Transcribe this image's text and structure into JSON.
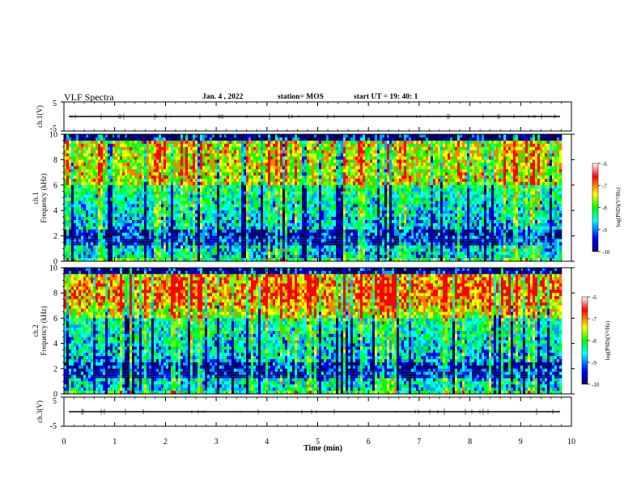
{
  "header": {
    "title": "VLF Spectra",
    "date": "Jan. 4 , 2022",
    "station": "station= MOS",
    "start": "start UT =  19: 40: 1"
  },
  "chart_data": [
    {
      "type": "line",
      "panel": "waveform-ch1",
      "ylabel": "ch.1(V)",
      "ylim": [
        -5,
        5
      ],
      "yticks": [
        "5",
        "-5"
      ],
      "x": [
        0,
        10
      ],
      "values": [
        0,
        0
      ]
    },
    {
      "type": "heatmap",
      "panel": "spectrogram-ch1",
      "ylabel_top": "ch.1",
      "ylabel": "Frequency (kHz)",
      "ylim": [
        0,
        10
      ],
      "yticks": [
        "0",
        "2",
        "4",
        "6",
        "8",
        "10"
      ],
      "colorbar": {
        "label": "log(PSD)(V²/Hz)",
        "range": [
          -10,
          -6
        ],
        "ticks": [
          "-6",
          "-7",
          "-8",
          "-9",
          "-10"
        ]
      }
    },
    {
      "type": "heatmap",
      "panel": "spectrogram-ch2",
      "ylabel_top": "ch.2",
      "ylabel": "Frequency (kHz)",
      "ylim": [
        0,
        10
      ],
      "yticks": [
        "0",
        "2",
        "4",
        "6",
        "8",
        "10"
      ],
      "colorbar": {
        "label": "log(PSD)(V²/Hz)",
        "range": [
          -10,
          -6
        ],
        "ticks": [
          "-6",
          "-7",
          "-8",
          "-9",
          "-10"
        ]
      }
    },
    {
      "type": "line",
      "panel": "waveform-ch3",
      "ylabel": "ch.3(V)",
      "ylim": [
        -5,
        5
      ],
      "yticks": [
        "5",
        "-5"
      ],
      "x": [
        0,
        10
      ],
      "values": [
        0,
        0
      ]
    }
  ],
  "xaxis": {
    "label": "Time (min)",
    "ticks": [
      "0",
      "1",
      "2",
      "3",
      "4",
      "5",
      "6",
      "7",
      "8",
      "9",
      "10"
    ],
    "range": [
      0,
      10
    ]
  },
  "colors": {
    "colormap": [
      "#000066",
      "#0000ff",
      "#00ffff",
      "#00ff00",
      "#ffff00",
      "#ff0000",
      "#ffffff"
    ]
  }
}
